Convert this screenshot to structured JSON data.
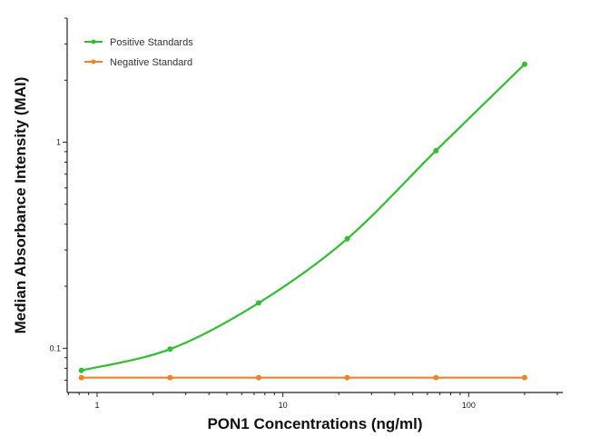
{
  "chart_data": {
    "type": "line",
    "title": "",
    "xlabel": "PON1 Concentrations (ng/ml)",
    "ylabel": "Median Absorbance Intensity (MAI)",
    "x_scale": "log",
    "y_scale": "log",
    "xlim": [
      0.69,
      321
    ],
    "ylim": [
      0.061,
      4
    ],
    "x_ticks": [
      1,
      10,
      100
    ],
    "x_tick_labels": [
      "1",
      "10",
      "100"
    ],
    "y_ticks": [
      0.1,
      1
    ],
    "y_tick_labels": [
      "0.1",
      "1"
    ],
    "grid": false,
    "legend_position": "top-left",
    "series": [
      {
        "name": "Positive Standards",
        "color": "#2ec02e",
        "x": [
          0.823,
          2.47,
          7.41,
          22.2,
          66.7,
          200
        ],
        "y": [
          0.078,
          0.099,
          0.166,
          0.34,
          0.91,
          2.39
        ]
      },
      {
        "name": "Negative Standard",
        "color": "#f58220",
        "x": [
          0.823,
          2.47,
          7.41,
          22.2,
          66.7,
          200
        ],
        "y": [
          0.072,
          0.072,
          0.072,
          0.072,
          0.072,
          0.072
        ]
      }
    ]
  }
}
